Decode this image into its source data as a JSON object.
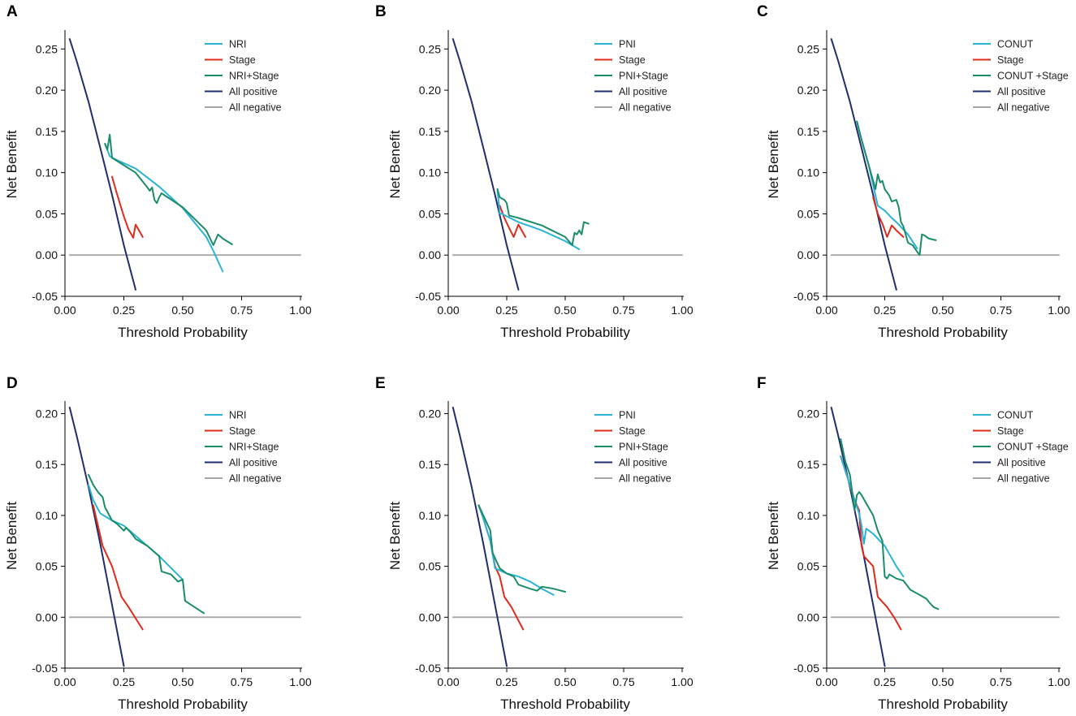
{
  "figure": {
    "panels_order": [
      "A",
      "B",
      "C",
      "D",
      "E",
      "F"
    ]
  },
  "chart_data": [
    {
      "type": "line",
      "panel": "A",
      "xlabel": "Threshold Probability",
      "ylabel": "Net Benefit",
      "xlim": [
        0,
        1
      ],
      "ylim": [
        -0.05,
        0.27
      ],
      "xticks": [
        "0.00",
        "0.25",
        "0.50",
        "0.75",
        "1.00"
      ],
      "xtick_values": [
        0,
        0.25,
        0.5,
        0.75,
        1.0
      ],
      "yticks": [
        "0.25",
        "0.20",
        "0.15",
        "0.10",
        "0.05",
        "0.00",
        "-0.05"
      ],
      "ytick_values": [
        0.25,
        0.2,
        0.15,
        0.1,
        0.05,
        0.0,
        -0.05
      ],
      "legend": [
        "NRI",
        "Stage",
        "NRI+Stage",
        "All positive",
        "All negative"
      ],
      "series": [
        {
          "name": "All negative",
          "color": "#a6a6a6",
          "x": [
            0.02,
            1.0
          ],
          "y": [
            0,
            0
          ]
        },
        {
          "name": "All positive",
          "color": "#1f2e6e",
          "x": [
            0.02,
            0.05,
            0.1,
            0.15,
            0.2,
            0.25,
            0.3
          ],
          "y": [
            0.262,
            0.235,
            0.186,
            0.13,
            0.073,
            0.012,
            -0.042
          ]
        },
        {
          "name": "Stage",
          "color": "#e02a1b",
          "x": [
            0.2,
            0.22,
            0.25,
            0.27,
            0.29,
            0.3,
            0.33
          ],
          "y": [
            0.095,
            0.075,
            0.047,
            0.031,
            0.021,
            0.037,
            0.022
          ]
        },
        {
          "name": "NRI",
          "color": "#2ab3d6",
          "x": [
            0.17,
            0.19,
            0.2,
            0.3,
            0.4,
            0.5,
            0.6,
            0.63,
            0.67
          ],
          "y": [
            0.135,
            0.12,
            0.118,
            0.105,
            0.083,
            0.057,
            0.022,
            0.005,
            -0.02
          ]
        },
        {
          "name": "NRI+Stage",
          "color": "#1a8c6a",
          "x": [
            0.17,
            0.18,
            0.19,
            0.2,
            0.3,
            0.35,
            0.36,
            0.37,
            0.38,
            0.39,
            0.4,
            0.41,
            0.5,
            0.6,
            0.63,
            0.65,
            0.67,
            0.71
          ],
          "y": [
            0.135,
            0.128,
            0.146,
            0.118,
            0.1,
            0.082,
            0.078,
            0.082,
            0.067,
            0.063,
            0.07,
            0.075,
            0.058,
            0.03,
            0.012,
            0.025,
            0.02,
            0.013
          ]
        }
      ]
    },
    {
      "type": "line",
      "panel": "B",
      "xlabel": "Threshold Probability",
      "ylabel": "Net Benefit",
      "xlim": [
        0,
        1
      ],
      "ylim": [
        -0.05,
        0.27
      ],
      "xticks": [
        "0.00",
        "0.25",
        "0.50",
        "0.75",
        "1.00"
      ],
      "xtick_values": [
        0,
        0.25,
        0.5,
        0.75,
        1.0
      ],
      "yticks": [
        "0.25",
        "0.20",
        "0.15",
        "0.10",
        "0.05",
        "0.00",
        "-0.05"
      ],
      "ytick_values": [
        0.25,
        0.2,
        0.15,
        0.1,
        0.05,
        0.0,
        -0.05
      ],
      "legend": [
        "PNI",
        "Stage",
        "PNI+Stage",
        "All positive",
        "All negative"
      ],
      "series": [
        {
          "name": "All negative",
          "color": "#a6a6a6",
          "x": [
            0.02,
            1.0
          ],
          "y": [
            0,
            0
          ]
        },
        {
          "name": "All positive",
          "color": "#1f2e6e",
          "x": [
            0.02,
            0.05,
            0.1,
            0.15,
            0.2,
            0.25,
            0.3
          ],
          "y": [
            0.262,
            0.235,
            0.186,
            0.13,
            0.073,
            0.012,
            -0.042
          ]
        },
        {
          "name": "Stage",
          "color": "#e02a1b",
          "x": [
            0.22,
            0.24,
            0.26,
            0.28,
            0.3,
            0.33
          ],
          "y": [
            0.06,
            0.045,
            0.033,
            0.022,
            0.037,
            0.022
          ]
        },
        {
          "name": "PNI",
          "color": "#2ab3d6",
          "x": [
            0.21,
            0.22,
            0.23,
            0.25,
            0.3,
            0.4,
            0.5,
            0.56
          ],
          "y": [
            0.08,
            0.05,
            0.05,
            0.047,
            0.04,
            0.03,
            0.017,
            0.007
          ]
        },
        {
          "name": "PNI+Stage",
          "color": "#1a8c6a",
          "x": [
            0.21,
            0.22,
            0.24,
            0.25,
            0.26,
            0.3,
            0.4,
            0.5,
            0.53,
            0.54,
            0.55,
            0.56,
            0.57,
            0.58,
            0.6
          ],
          "y": [
            0.08,
            0.07,
            0.067,
            0.063,
            0.048,
            0.045,
            0.036,
            0.022,
            0.012,
            0.027,
            0.025,
            0.03,
            0.025,
            0.04,
            0.038
          ]
        }
      ]
    },
    {
      "type": "line",
      "panel": "C",
      "xlabel": "Threshold Probability",
      "ylabel": "Net Benefit",
      "xlim": [
        0,
        1
      ],
      "ylim": [
        -0.05,
        0.27
      ],
      "xticks": [
        "0.00",
        "0.25",
        "0.50",
        "0.75",
        "1.00"
      ],
      "xtick_values": [
        0,
        0.25,
        0.5,
        0.75,
        1.0
      ],
      "yticks": [
        "0.25",
        "0.20",
        "0.15",
        "0.10",
        "0.05",
        "0.00",
        "-0.05"
      ],
      "ytick_values": [
        0.25,
        0.2,
        0.15,
        0.1,
        0.05,
        0.0,
        -0.05
      ],
      "legend": [
        "CONUT",
        "Stage",
        "CONUT +Stage",
        "All positive",
        "All negative"
      ],
      "series": [
        {
          "name": "All negative",
          "color": "#a6a6a6",
          "x": [
            0.02,
            1.0
          ],
          "y": [
            0,
            0
          ]
        },
        {
          "name": "All positive",
          "color": "#1f2e6e",
          "x": [
            0.02,
            0.05,
            0.1,
            0.15,
            0.2,
            0.25,
            0.3
          ],
          "y": [
            0.262,
            0.235,
            0.186,
            0.13,
            0.073,
            0.012,
            -0.042
          ]
        },
        {
          "name": "Stage",
          "color": "#e02a1b",
          "x": [
            0.2,
            0.22,
            0.24,
            0.26,
            0.28,
            0.3,
            0.33
          ],
          "y": [
            0.07,
            0.05,
            0.038,
            0.022,
            0.036,
            0.03,
            0.022
          ]
        },
        {
          "name": "CONUT",
          "color": "#2ab3d6",
          "x": [
            0.13,
            0.15,
            0.18,
            0.2,
            0.22,
            0.25,
            0.28,
            0.3,
            0.35,
            0.39
          ],
          "y": [
            0.162,
            0.14,
            0.11,
            0.085,
            0.06,
            0.054,
            0.045,
            0.04,
            0.025,
            0.008
          ]
        },
        {
          "name": "CONUT +Stage",
          "color": "#1a8c6a",
          "x": [
            0.13,
            0.15,
            0.18,
            0.2,
            0.21,
            0.22,
            0.23,
            0.24,
            0.25,
            0.26,
            0.27,
            0.28,
            0.3,
            0.31,
            0.32,
            0.33,
            0.35,
            0.37,
            0.39,
            0.4,
            0.41,
            0.42,
            0.44,
            0.47
          ],
          "y": [
            0.162,
            0.14,
            0.11,
            0.09,
            0.08,
            0.098,
            0.088,
            0.09,
            0.08,
            0.076,
            0.072,
            0.065,
            0.067,
            0.058,
            0.04,
            0.035,
            0.015,
            0.012,
            0.004,
            0.0,
            0.025,
            0.024,
            0.02,
            0.018
          ]
        }
      ]
    },
    {
      "type": "line",
      "panel": "D",
      "xlabel": "Threshold Probability",
      "ylabel": "Net Benefit",
      "xlim": [
        0,
        1
      ],
      "ylim": [
        -0.05,
        0.21
      ],
      "xticks": [
        "0.00",
        "0.25",
        "0.50",
        "0.75",
        "1.00"
      ],
      "xtick_values": [
        0,
        0.25,
        0.5,
        0.75,
        1.0
      ],
      "yticks": [
        "0.20",
        "0.15",
        "0.10",
        "0.05",
        "0.00",
        "-0.05"
      ],
      "ytick_values": [
        0.2,
        0.15,
        0.1,
        0.05,
        0.0,
        -0.05
      ],
      "legend": [
        "NRI",
        "Stage",
        "NRI+Stage",
        "All positive",
        "All negative"
      ],
      "series": [
        {
          "name": "All negative",
          "color": "#a6a6a6",
          "x": [
            0.02,
            1.0
          ],
          "y": [
            0,
            0
          ]
        },
        {
          "name": "All positive",
          "color": "#1f2e6e",
          "x": [
            0.02,
            0.05,
            0.1,
            0.15,
            0.2,
            0.25
          ],
          "y": [
            0.206,
            0.178,
            0.128,
            0.072,
            0.012,
            -0.048
          ]
        },
        {
          "name": "Stage",
          "color": "#e02a1b",
          "x": [
            0.12,
            0.14,
            0.16,
            0.18,
            0.2,
            0.24,
            0.27,
            0.33
          ],
          "y": [
            0.11,
            0.09,
            0.07,
            0.06,
            0.05,
            0.02,
            0.01,
            -0.012
          ]
        },
        {
          "name": "NRI",
          "color": "#2ab3d6",
          "x": [
            0.1,
            0.12,
            0.15,
            0.2,
            0.25,
            0.3,
            0.4,
            0.5
          ],
          "y": [
            0.13,
            0.115,
            0.102,
            0.095,
            0.09,
            0.08,
            0.06,
            0.037
          ]
        },
        {
          "name": "NRI+Stage",
          "color": "#1a8c6a",
          "x": [
            0.1,
            0.12,
            0.14,
            0.16,
            0.17,
            0.2,
            0.22,
            0.25,
            0.26,
            0.28,
            0.3,
            0.35,
            0.4,
            0.41,
            0.45,
            0.48,
            0.5,
            0.51,
            0.55,
            0.59
          ],
          "y": [
            0.14,
            0.13,
            0.123,
            0.118,
            0.108,
            0.095,
            0.092,
            0.085,
            0.088,
            0.083,
            0.077,
            0.07,
            0.06,
            0.045,
            0.042,
            0.035,
            0.037,
            0.016,
            0.01,
            0.004
          ]
        }
      ]
    },
    {
      "type": "line",
      "panel": "E",
      "xlabel": "Threshold Probability",
      "ylabel": "Net Benefit",
      "xlim": [
        0,
        1
      ],
      "ylim": [
        -0.05,
        0.21
      ],
      "xticks": [
        "0.00",
        "0.25",
        "0.50",
        "0.75",
        "1.00"
      ],
      "xtick_values": [
        0,
        0.25,
        0.5,
        0.75,
        1.0
      ],
      "yticks": [
        "0.20",
        "0.15",
        "0.10",
        "0.05",
        "0.00",
        "-0.05"
      ],
      "ytick_values": [
        0.2,
        0.15,
        0.1,
        0.05,
        0.0,
        -0.05
      ],
      "legend": [
        "PNI",
        "Stage",
        "PNI+Stage",
        "All positive",
        "All negative"
      ],
      "series": [
        {
          "name": "All negative",
          "color": "#a6a6a6",
          "x": [
            0.02,
            1.0
          ],
          "y": [
            0,
            0
          ]
        },
        {
          "name": "All positive",
          "color": "#1f2e6e",
          "x": [
            0.02,
            0.05,
            0.1,
            0.15,
            0.2,
            0.25
          ],
          "y": [
            0.206,
            0.178,
            0.128,
            0.072,
            0.012,
            -0.048
          ]
        },
        {
          "name": "Stage",
          "color": "#e02a1b",
          "x": [
            0.13,
            0.15,
            0.18,
            0.2,
            0.22,
            0.24,
            0.27,
            0.32
          ],
          "y": [
            0.11,
            0.097,
            0.075,
            0.05,
            0.04,
            0.02,
            0.01,
            -0.012
          ]
        },
        {
          "name": "PNI",
          "color": "#2ab3d6",
          "x": [
            0.13,
            0.15,
            0.18,
            0.2,
            0.25,
            0.3,
            0.35,
            0.4,
            0.45
          ],
          "y": [
            0.11,
            0.097,
            0.075,
            0.048,
            0.043,
            0.04,
            0.035,
            0.028,
            0.022
          ]
        },
        {
          "name": "PNI+Stage",
          "color": "#1a8c6a",
          "x": [
            0.13,
            0.15,
            0.17,
            0.18,
            0.19,
            0.2,
            0.22,
            0.25,
            0.28,
            0.3,
            0.35,
            0.38,
            0.4,
            0.45,
            0.5
          ],
          "y": [
            0.11,
            0.1,
            0.09,
            0.085,
            0.063,
            0.058,
            0.048,
            0.043,
            0.04,
            0.032,
            0.028,
            0.026,
            0.03,
            0.028,
            0.025
          ]
        }
      ]
    },
    {
      "type": "line",
      "panel": "F",
      "xlabel": "Threshold Probability",
      "ylabel": "Net Benefit",
      "xlim": [
        0,
        1
      ],
      "ylim": [
        -0.05,
        0.21
      ],
      "xticks": [
        "0.00",
        "0.25",
        "0.50",
        "0.75",
        "1.00"
      ],
      "xtick_values": [
        0,
        0.25,
        0.5,
        0.75,
        1.0
      ],
      "yticks": [
        "0.20",
        "0.15",
        "0.10",
        "0.05",
        "0.00",
        "-0.05"
      ],
      "ytick_values": [
        0.2,
        0.15,
        0.1,
        0.05,
        0.0,
        -0.05
      ],
      "legend": [
        "CONUT",
        "Stage",
        "CONUT +Stage",
        "All positive",
        "All negative"
      ],
      "series": [
        {
          "name": "All negative",
          "color": "#a6a6a6",
          "x": [
            0.02,
            1.0
          ],
          "y": [
            0,
            0
          ]
        },
        {
          "name": "All positive",
          "color": "#1f2e6e",
          "x": [
            0.02,
            0.05,
            0.1,
            0.15,
            0.2,
            0.25
          ],
          "y": [
            0.206,
            0.178,
            0.128,
            0.072,
            0.012,
            -0.048
          ]
        },
        {
          "name": "Stage",
          "color": "#e02a1b",
          "x": [
            0.06,
            0.1,
            0.12,
            0.14,
            0.15,
            0.16,
            0.2,
            0.22,
            0.26,
            0.29,
            0.32
          ],
          "y": [
            0.158,
            0.13,
            0.115,
            0.105,
            0.07,
            0.06,
            0.05,
            0.02,
            0.01,
            0.0,
            -0.012
          ]
        },
        {
          "name": "CONUT",
          "color": "#2ab3d6",
          "x": [
            0.06,
            0.1,
            0.12,
            0.14,
            0.15,
            0.16,
            0.17,
            0.2,
            0.25,
            0.3,
            0.33
          ],
          "y": [
            0.158,
            0.13,
            0.115,
            0.102,
            0.09,
            0.072,
            0.087,
            0.082,
            0.07,
            0.05,
            0.04
          ]
        },
        {
          "name": "CONUT +Stage",
          "color": "#1a8c6a",
          "x": [
            0.06,
            0.08,
            0.1,
            0.12,
            0.13,
            0.14,
            0.15,
            0.17,
            0.18,
            0.2,
            0.22,
            0.24,
            0.25,
            0.26,
            0.27,
            0.3,
            0.33,
            0.36,
            0.4,
            0.43,
            0.44,
            0.46,
            0.48
          ],
          "y": [
            0.175,
            0.153,
            0.14,
            0.105,
            0.12,
            0.123,
            0.12,
            0.112,
            0.108,
            0.1,
            0.085,
            0.075,
            0.04,
            0.038,
            0.042,
            0.038,
            0.036,
            0.027,
            0.022,
            0.018,
            0.015,
            0.01,
            0.008
          ]
        }
      ]
    }
  ]
}
